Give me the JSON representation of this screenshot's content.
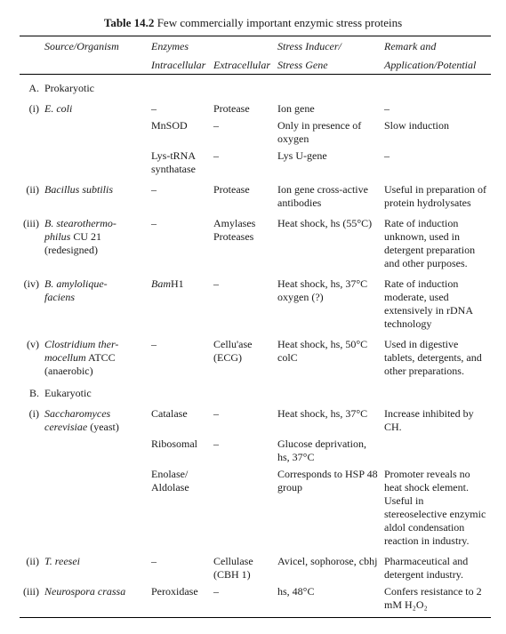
{
  "title_bold": "Table 14.2",
  "title_rest": " Few commercially important enzymic stress proteins",
  "headers": {
    "source": "Source/Organism",
    "enzymes": "Enzymes",
    "intracellular": "Intracellular",
    "extracellular": "Extracellular",
    "stress1": "Stress Inducer/",
    "stress2": "Stress Gene",
    "remark1": "Remark and",
    "remark2": "Application/Potential"
  },
  "sectA": "A.",
  "sectA_label": "Prokaryotic",
  "sectB": "B.",
  "sectB_label": "Eukaryotic",
  "rows": {
    "a1": {
      "num": "(i)",
      "org_ital": "E. coli",
      "line1": {
        "intra": "–",
        "extra": "Protease",
        "stress": "Ion gene",
        "remark": "–"
      },
      "line2": {
        "intra": "MnSOD",
        "extra": "–",
        "stress": "Only in presence of oxygen",
        "remark": "Slow induction"
      },
      "line3": {
        "intra": "Lys-tRNA synthatase",
        "extra": "–",
        "stress": "Lys U-gene",
        "remark": "–"
      }
    },
    "a2": {
      "num": "(ii)",
      "org_ital": "Bacillus subtilis",
      "intra": "–",
      "extra": "Protease",
      "stress": "Ion gene cross-active antibodies",
      "remark": "Useful in preparation of protein hydrolysates"
    },
    "a3": {
      "num": "(iii)",
      "org1": "B. stearothermo-",
      "org2_ital": "philus",
      "org2_plain": " CU 21",
      "org3": "(redesigned)",
      "intra": "–",
      "extra": "Amylases Proteases",
      "stress": "Heat shock, hs (55°C)",
      "remark": "Rate of induction unknown, used in detergent preparation and other purposes."
    },
    "a4": {
      "num": "(iv)",
      "org1": "B. amylolique-",
      "org2": "faciens",
      "intra_ital": "Bam",
      "intra_plain": "H1",
      "extra": "–",
      "stress": "Heat shock, hs, 37°C oxygen (?)",
      "remark": "Rate of induction moderate, used extensively in rDNA technology"
    },
    "a5": {
      "num": "(v)",
      "org1_ital": "Clostridium ther-",
      "org2_ital": "mocellum",
      "org2_plain": " ATCC",
      "org3": "(anaerobic)",
      "intra": "–",
      "extra": "Cellu'ase (ECG)",
      "stress": "Heat shock, hs, 50°C colC",
      "remark": "Used in digestive tablets, detergents, and other preparations."
    },
    "b1": {
      "num": "(i)",
      "org_ital": "Saccharomyces cerevisiae",
      "org_plain": " (yeast)",
      "line1": {
        "intra": "Catalase",
        "extra": "–",
        "stress": "Heat shock, hs, 37°C",
        "remark": "Increase inhibited by CH."
      },
      "line2": {
        "intra": "Ribosomal",
        "extra": "–",
        "stress": "Glucose deprivation, hs, 37°C",
        "remark": ""
      },
      "line3": {
        "intra": "Enolase/ Aldolase",
        "extra": "",
        "stress": "Corresponds to HSP 48 group",
        "remark": "Promoter reveals no heat shock element. Useful in stereoselective enzymic aldol condensation reaction in industry."
      }
    },
    "b2": {
      "num": "(ii)",
      "org_ital": "T. reesei",
      "intra": "–",
      "extra": "Cellulase (CBH 1)",
      "stress": "Avicel, sophorose, cbhj",
      "remark": "Pharmaceutical and detergent industry."
    },
    "b3": {
      "num": "(iii)",
      "org_ital": "Neurospora crassa",
      "intra": "Peroxidase",
      "extra": "–",
      "stress": "hs, 48°C",
      "remark": "Confers resistance to 2 mM H₂O₂"
    }
  }
}
